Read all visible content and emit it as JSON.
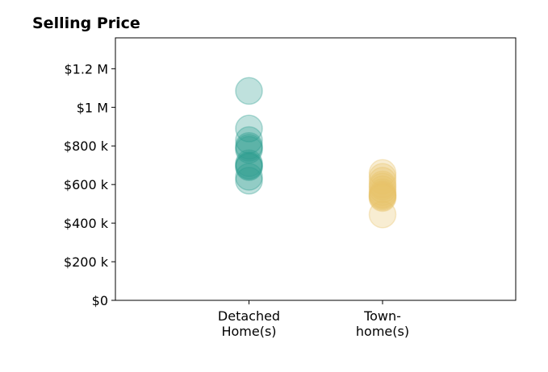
{
  "chart_data": {
    "type": "scatter",
    "title": "Selling Price",
    "xlabel": "",
    "ylabel": "",
    "categories": [
      [
        "Detached",
        "Home(s)"
      ],
      [
        "Town-",
        "home(s)"
      ]
    ],
    "ylim": [
      0,
      1360000
    ],
    "yticks": [
      {
        "value": 0,
        "label": "$0"
      },
      {
        "value": 200000,
        "label": "$200 k"
      },
      {
        "value": 400000,
        "label": "$400 k"
      },
      {
        "value": 600000,
        "label": "$600 k"
      },
      {
        "value": 800000,
        "label": "$800 k"
      },
      {
        "value": 1000000,
        "label": "$1 M"
      },
      {
        "value": 1200000,
        "label": "$1.2 M"
      }
    ],
    "grid": false,
    "series": [
      {
        "category_index": 0,
        "color": "#2a9d8f",
        "values": [
          1085000,
          890000,
          830000,
          800000,
          790000,
          780000,
          710000,
          700000,
          695000,
          690000,
          640000,
          620000
        ]
      },
      {
        "category_index": 1,
        "color": "#e9c46a",
        "values": [
          660000,
          640000,
          620000,
          600000,
          590000,
          575000,
          560000,
          550000,
          545000,
          540000,
          535000,
          530000,
          445000
        ]
      }
    ]
  }
}
